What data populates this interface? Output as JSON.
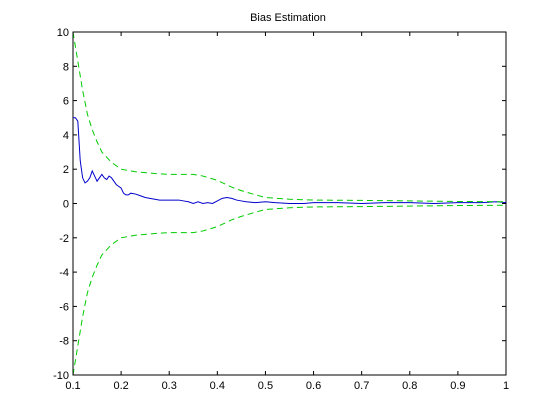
{
  "chart_data": {
    "type": "line",
    "title": "Bias Estimation",
    "xlabel": "",
    "ylabel": "",
    "xlim": [
      0.1,
      1
    ],
    "ylim": [
      -10,
      10
    ],
    "xticks": [
      "0.1",
      "0.2",
      "0.3",
      "0.4",
      "0.5",
      "0.6",
      "0.7",
      "0.8",
      "0.9",
      "1"
    ],
    "yticks": [
      "-10",
      "-8",
      "-6",
      "-4",
      "-2",
      "0",
      "2",
      "4",
      "6",
      "8",
      "10"
    ],
    "grid": false,
    "series": [
      {
        "color": "#0000cc",
        "style": "solid",
        "x": [
          0.1,
          0.105,
          0.11,
          0.115,
          0.12,
          0.125,
          0.13,
          0.135,
          0.14,
          0.145,
          0.15,
          0.155,
          0.16,
          0.165,
          0.17,
          0.175,
          0.18,
          0.185,
          0.19,
          0.195,
          0.2,
          0.205,
          0.21,
          0.215,
          0.22,
          0.23,
          0.24,
          0.25,
          0.26,
          0.27,
          0.28,
          0.29,
          0.3,
          0.31,
          0.32,
          0.33,
          0.34,
          0.35,
          0.36,
          0.37,
          0.38,
          0.39,
          0.4,
          0.41,
          0.42,
          0.43,
          0.44,
          0.45,
          0.46,
          0.48,
          0.5,
          0.52,
          0.55,
          0.58,
          0.6,
          0.65,
          0.7,
          0.75,
          0.8,
          0.85,
          0.9,
          0.95,
          0.98,
          1.0
        ],
        "y": [
          5.0,
          5.0,
          4.8,
          2.5,
          1.5,
          1.2,
          1.3,
          1.5,
          1.9,
          1.6,
          1.3,
          1.5,
          1.7,
          1.5,
          1.4,
          1.6,
          1.5,
          1.3,
          1.1,
          1.0,
          0.9,
          0.6,
          0.5,
          0.5,
          0.6,
          0.55,
          0.45,
          0.35,
          0.3,
          0.25,
          0.2,
          0.2,
          0.2,
          0.2,
          0.2,
          0.15,
          0.1,
          0.0,
          0.1,
          0.0,
          0.05,
          0.0,
          0.15,
          0.3,
          0.35,
          0.3,
          0.2,
          0.15,
          0.1,
          0.05,
          0.1,
          0.05,
          0.0,
          0.0,
          0.05,
          0.05,
          0.0,
          0.05,
          0.05,
          0.0,
          0.05,
          0.05,
          0.1,
          0.05
        ]
      },
      {
        "color": "#00cc00",
        "style": "dashed",
        "x": [
          0.1,
          0.11,
          0.12,
          0.13,
          0.14,
          0.15,
          0.16,
          0.17,
          0.18,
          0.19,
          0.2,
          0.21,
          0.22,
          0.23,
          0.25,
          0.27,
          0.3,
          0.33,
          0.35,
          0.37,
          0.4,
          0.43,
          0.45,
          0.48,
          0.5,
          0.55,
          0.6,
          0.7,
          0.8,
          0.9,
          1.0
        ],
        "y": [
          10.0,
          8.3,
          6.6,
          5.2,
          4.3,
          3.6,
          3.0,
          2.7,
          2.4,
          2.2,
          2.0,
          1.95,
          1.9,
          1.85,
          1.8,
          1.75,
          1.7,
          1.7,
          1.7,
          1.6,
          1.35,
          0.95,
          0.75,
          0.5,
          0.35,
          0.25,
          0.2,
          0.18,
          0.15,
          0.12,
          0.1
        ]
      },
      {
        "color": "#00cc00",
        "style": "dashed",
        "x": [
          0.1,
          0.11,
          0.12,
          0.13,
          0.14,
          0.15,
          0.16,
          0.17,
          0.18,
          0.19,
          0.2,
          0.21,
          0.22,
          0.23,
          0.25,
          0.27,
          0.3,
          0.33,
          0.35,
          0.37,
          0.4,
          0.43,
          0.45,
          0.48,
          0.5,
          0.55,
          0.6,
          0.7,
          0.8,
          0.9,
          1.0
        ],
        "y": [
          -10.0,
          -8.3,
          -6.6,
          -5.2,
          -4.3,
          -3.6,
          -3.0,
          -2.7,
          -2.4,
          -2.2,
          -2.0,
          -1.95,
          -1.9,
          -1.85,
          -1.8,
          -1.75,
          -1.7,
          -1.7,
          -1.7,
          -1.6,
          -1.35,
          -0.95,
          -0.75,
          -0.5,
          -0.35,
          -0.25,
          -0.2,
          -0.18,
          -0.15,
          -0.12,
          -0.1
        ]
      }
    ]
  }
}
